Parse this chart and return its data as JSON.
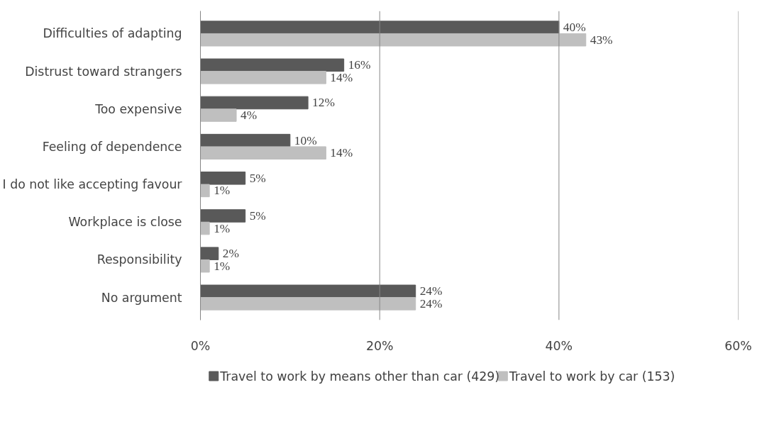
{
  "chart_data": {
    "type": "bar",
    "orientation": "horizontal",
    "categories": [
      "Difficulties of adapting",
      "Distrust toward strangers",
      "Too expensive",
      "Feeling of dependence",
      "I do not like accepting favour",
      "Workplace is close",
      "Responsibility",
      "No argument"
    ],
    "series": [
      {
        "name": "Travel to work by means other than car (429)",
        "color": "#595959",
        "values": [
          40,
          16,
          12,
          10,
          5,
          5,
          2,
          24
        ],
        "value_labels": [
          "40%",
          "16%",
          "12%",
          "10%",
          "5%",
          "5%",
          "2%",
          "24%"
        ]
      },
      {
        "name": "Travel to work by car (153)",
        "color": "#bfbfbf",
        "values": [
          43,
          14,
          4,
          14,
          1,
          1,
          1,
          24
        ],
        "value_labels": [
          "43%",
          "14%",
          "4%",
          "14%",
          "1%",
          "1%",
          "1%",
          "24%"
        ]
      }
    ],
    "xlim": [
      0,
      60
    ],
    "xticks": [
      {
        "value": 0,
        "label": "0%"
      },
      {
        "value": 20,
        "label": "20%"
      },
      {
        "value": 40,
        "label": "40%"
      },
      {
        "value": 60,
        "label": "60%"
      }
    ],
    "grid": "x",
    "legend": "bottom"
  }
}
